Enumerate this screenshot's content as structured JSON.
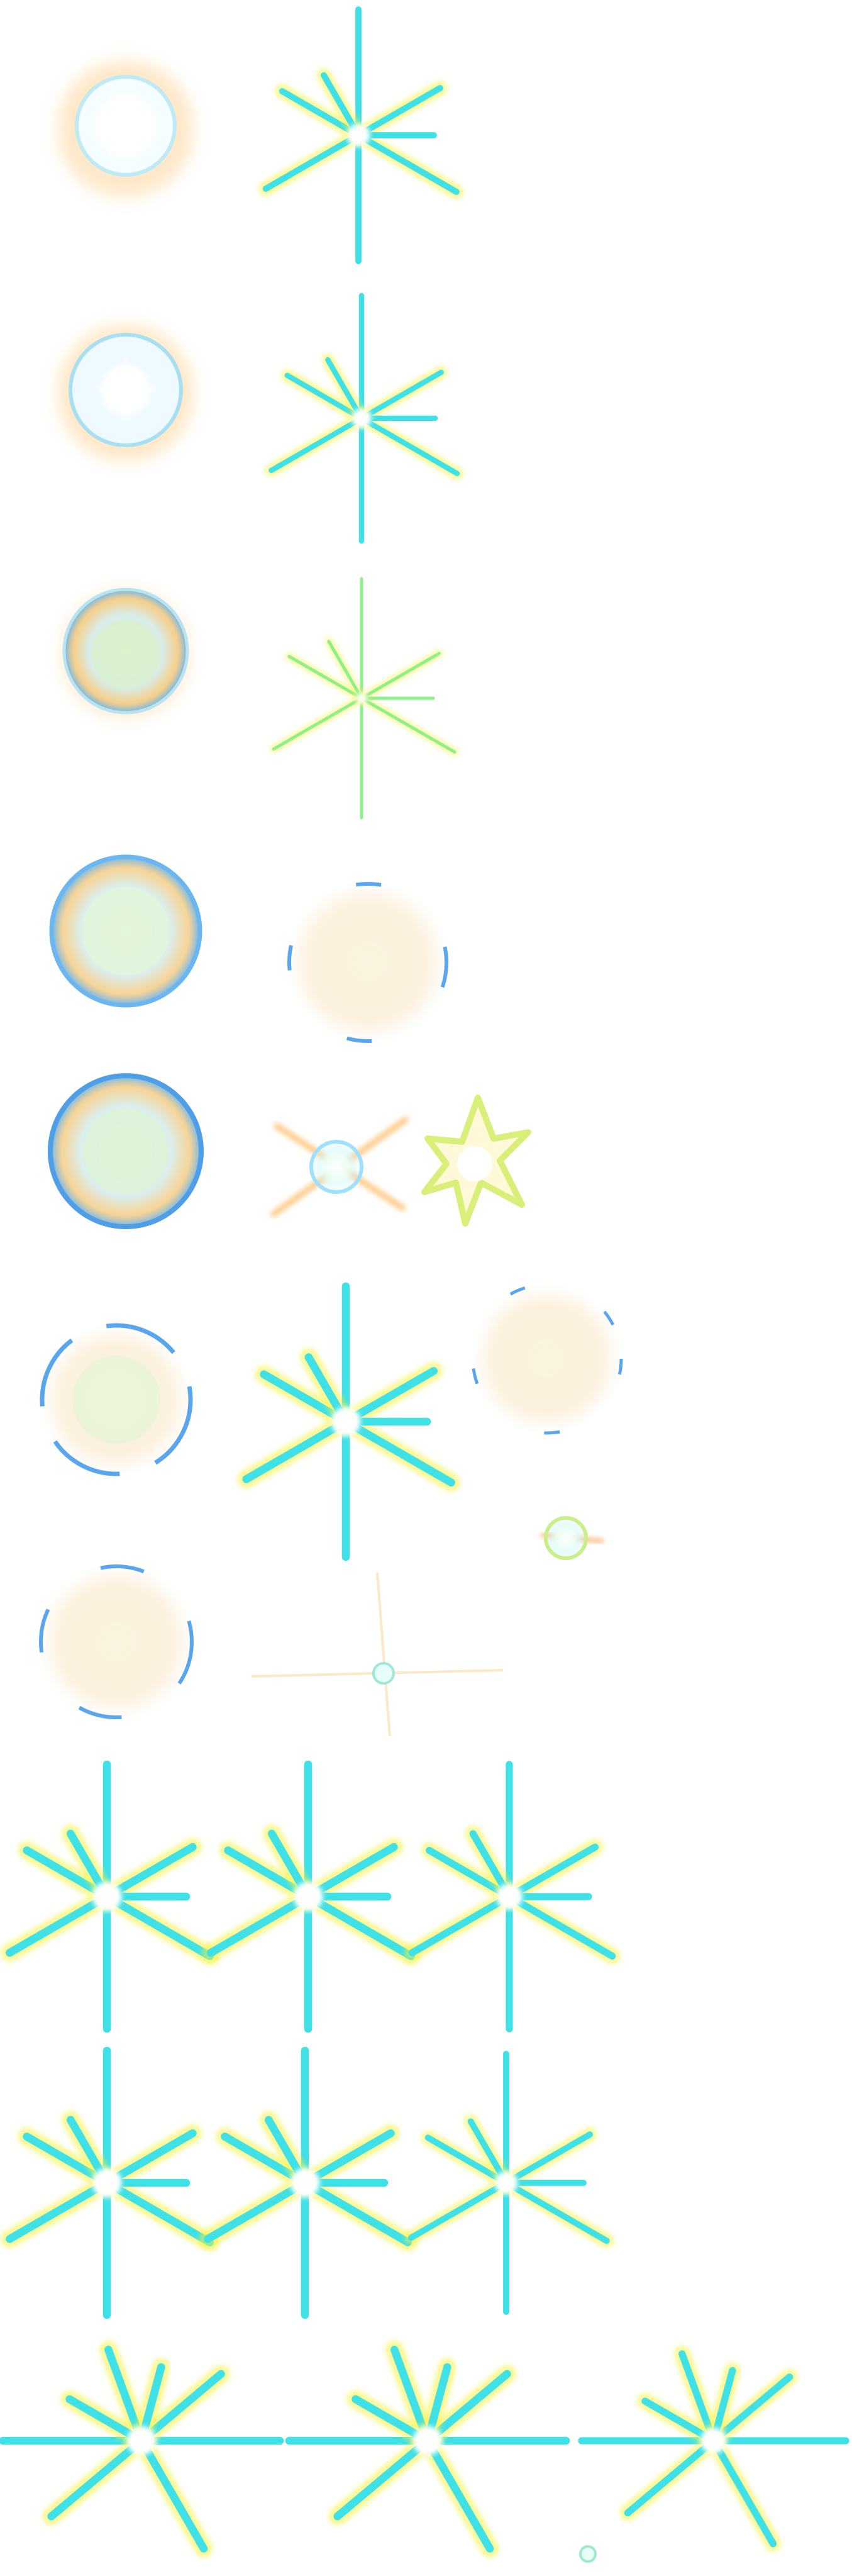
{
  "sheet": {
    "type": "sprite-sheet",
    "background": "#ffffff",
    "palette": {
      "ray_yellow": "#f6f23a",
      "ray_cyan": "#3fe0e6",
      "ray_green": "#8ef08a",
      "core_white": "#ffffff",
      "glow_orange": "#ffb04a",
      "bubble_blue": "#5aaef0",
      "bubble_gold": "#f2b64e",
      "haze_cream": "#fbe7c8"
    },
    "icons": [
      "glowing-orb-sprite",
      "starburst-sprite",
      "soap-bubble-sprite",
      "dust-cloud-sprite",
      "sparkle-sprite",
      "star-flower-sprite"
    ]
  }
}
